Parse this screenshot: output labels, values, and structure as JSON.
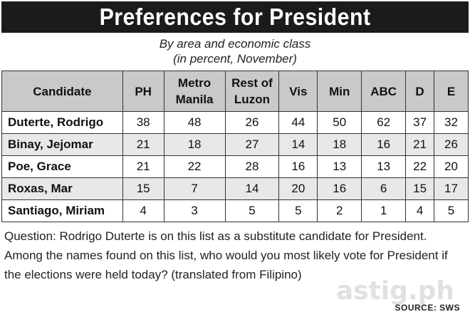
{
  "title": "Preferences for President",
  "subtitle_line1": "By area and economic class",
  "subtitle_line2": "(in percent, November)",
  "headers": {
    "candidate": "Candidate",
    "ph": "PH",
    "metro_1": "Metro",
    "metro_2": "Manila",
    "rest_1": "Rest of",
    "rest_2": "Luzon",
    "vis": "Vis",
    "min": "Min",
    "abc": "ABC",
    "d": "D",
    "e": "E"
  },
  "chart_data": {
    "type": "table",
    "title": "Preferences for President",
    "columns": [
      "Candidate",
      "PH",
      "Metro Manila",
      "Rest of Luzon",
      "Vis",
      "Min",
      "ABC",
      "D",
      "E"
    ],
    "rows": [
      {
        "name": "Duterte, Rodrigo",
        "values": [
          "38",
          "48",
          "26",
          "44",
          "50",
          "62",
          "37",
          "32"
        ]
      },
      {
        "name": "Binay, Jejomar",
        "values": [
          "21",
          "18",
          "27",
          "14",
          "18",
          "16",
          "21",
          "26"
        ]
      },
      {
        "name": "Poe, Grace",
        "values": [
          "21",
          "22",
          "28",
          "16",
          "13",
          "13",
          "22",
          "20"
        ]
      },
      {
        "name": "Roxas, Mar",
        "values": [
          "15",
          "7",
          "14",
          "20",
          "16",
          "6",
          "15",
          "17"
        ]
      },
      {
        "name": "Santiago, Miriam",
        "values": [
          "4",
          "3",
          "5",
          "5",
          "2",
          "1",
          "4",
          "5"
        ]
      }
    ]
  },
  "footnote": "Question: Rodrigo Duterte is on this list as a substitute candidate for President. Among the names found on this list, who would you most likely vote for President if the elections were held today? (translated from Filipino)",
  "source": "SOURCE: SWS",
  "watermark": "astig.ph",
  "colors": {
    "title_bg": "#1b1b1b",
    "header_bg": "#c9c9c9",
    "row_shade": "#e8e8e8"
  }
}
